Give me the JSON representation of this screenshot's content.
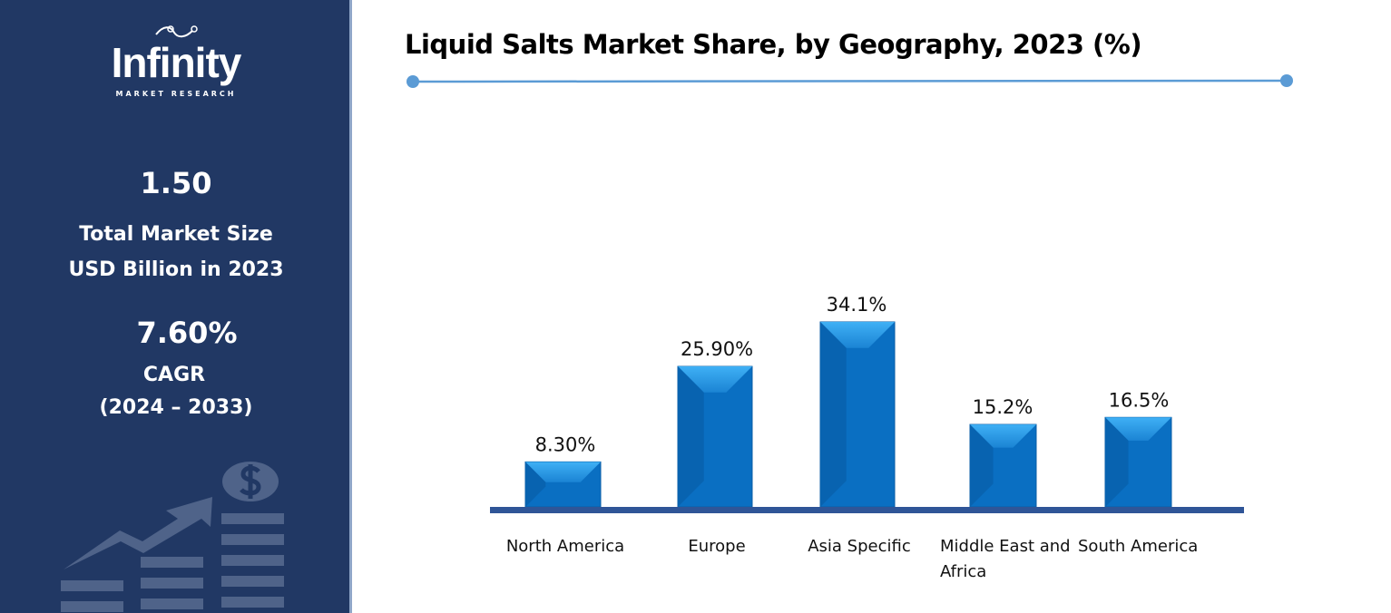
{
  "sidebar": {
    "logo_text": "Infinity",
    "logo_sub": "MARKET RESEARCH",
    "market_size": "1.50",
    "market_size_label_1": "Total Market Size",
    "market_size_label_2": "USD Billion in 2023",
    "cagr": "7.60%",
    "cagr_label": "CAGR",
    "cagr_period": "(2024 – 2033)",
    "background_color": "#213864",
    "decor_icon": "growth-arrow-coins-icon"
  },
  "chart_data": {
    "type": "bar",
    "title": "Liquid Salts Market Share, by Geography, 2023 (%)",
    "categories": [
      "North America",
      "Europe",
      "Asia Specific",
      "Middle East and Africa",
      "South America"
    ],
    "values": [
      8.3,
      25.9,
      34.1,
      15.2,
      16.5
    ],
    "data_labels": [
      "8.30%",
      "25.90%",
      "34.1%",
      "15.2%",
      "16.5%"
    ],
    "bar_color": "#0a6fc2",
    "axis_color": "#2f5597",
    "grid": false,
    "legend": "none"
  }
}
